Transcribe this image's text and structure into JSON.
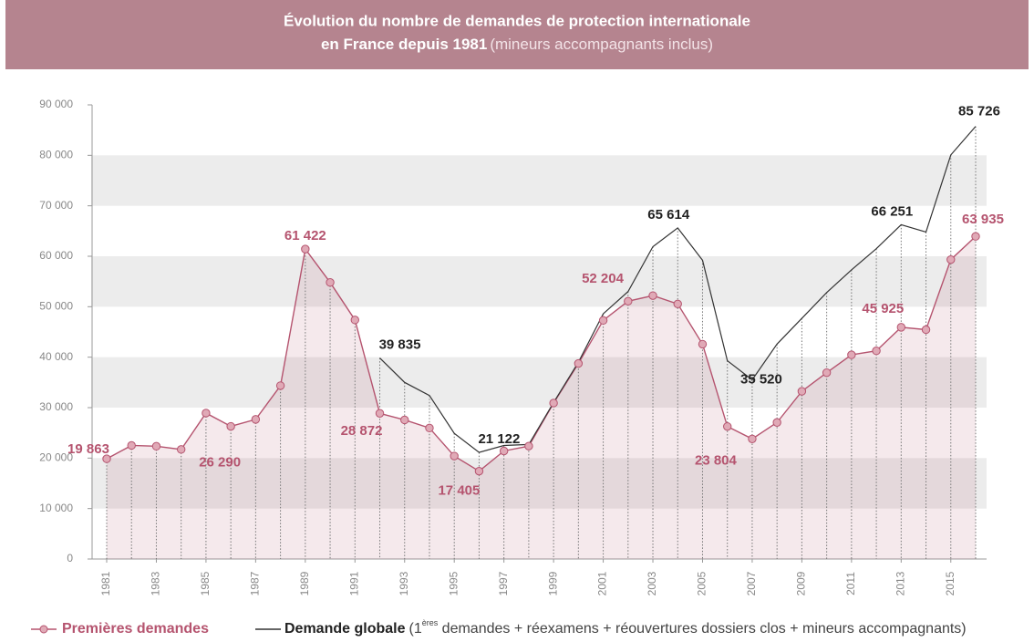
{
  "chart_data": {
    "type": "line",
    "title": "Évolution du nombre de demandes de protection internationale",
    "title_line2": "en France depuis 1981",
    "subtitle": "(mineurs accompagnants inclus)",
    "x": [
      1981,
      1982,
      1983,
      1984,
      1985,
      1986,
      1987,
      1988,
      1989,
      1990,
      1991,
      1992,
      1993,
      1994,
      1995,
      1996,
      1997,
      1998,
      1999,
      2000,
      2001,
      2002,
      2003,
      2004,
      2005,
      2006,
      2007,
      2008,
      2009,
      2010,
      2011,
      2012,
      2013,
      2014,
      2015,
      2016
    ],
    "xlim": [
      1981,
      2016
    ],
    "xticks": [
      1981,
      1983,
      1985,
      1987,
      1989,
      1991,
      1993,
      1995,
      1997,
      1999,
      2001,
      2003,
      2005,
      2007,
      2009,
      2011,
      2013,
      2015
    ],
    "ylim": [
      0,
      90000
    ],
    "yticks": [
      0,
      {
        "value": 10000,
        "label": "10 000"
      },
      {
        "value": 20000,
        "label": "20 000"
      },
      {
        "value": 30000,
        "label": "30 000"
      },
      {
        "value": 40000,
        "label": "40 000"
      },
      {
        "value": 50000,
        "label": "50 000"
      },
      {
        "value": 60000,
        "label": "60 000"
      },
      {
        "value": 70000,
        "label": "70 000"
      },
      {
        "value": 80000,
        "label": "80 000"
      },
      {
        "value": 90000,
        "label": "90 000"
      }
    ],
    "grid": true,
    "series": [
      {
        "name": "Premières demandes",
        "color": "#b5546f",
        "values": [
          19863,
          22505,
          22350,
          21714,
          28925,
          26290,
          27672,
          34352,
          61422,
          54813,
          47380,
          28872,
          27564,
          25964,
          20415,
          17405,
          21416,
          22375,
          30907,
          38747,
          47291,
          51087,
          52204,
          50547,
          42578,
          26269,
          23804,
          27063,
          33235,
          36931,
          40464,
          41254,
          45925,
          45454,
          59335,
          63935
        ],
        "value_labels": [
          "19 863",
          null,
          null,
          null,
          null,
          "26 290",
          null,
          null,
          "61 422",
          null,
          null,
          "28 872",
          null,
          null,
          null,
          "17 405",
          null,
          null,
          null,
          null,
          null,
          null,
          "52 204",
          null,
          null,
          null,
          "23 804",
          null,
          null,
          null,
          null,
          null,
          "45 925",
          null,
          null,
          "63 935"
        ]
      },
      {
        "name": "Demande globale",
        "color": "#333333",
        "values": [
          null,
          null,
          null,
          null,
          null,
          null,
          null,
          null,
          null,
          null,
          null,
          39835,
          35000,
          32400,
          24900,
          21122,
          22500,
          22700,
          31000,
          39000,
          48600,
          53000,
          61900,
          65614,
          59200,
          39300,
          35520,
          42600,
          47700,
          52800,
          57300,
          61500,
          66251,
          64800,
          80075,
          85726
        ],
        "value_labels": [
          null,
          null,
          null,
          null,
          null,
          null,
          null,
          null,
          null,
          null,
          null,
          "39 835",
          null,
          null,
          null,
          "21 122",
          null,
          null,
          null,
          null,
          null,
          null,
          null,
          "65 614",
          null,
          null,
          "35 520",
          null,
          null,
          null,
          null,
          null,
          "66 251",
          null,
          null,
          "85 726"
        ]
      }
    ],
    "legend_note_prefix": "(1",
    "legend_note_sup": "ères",
    "legend_note_rest": " demandes + réexamens + réouvertures dossiers clos + mineurs accompagnants)"
  }
}
